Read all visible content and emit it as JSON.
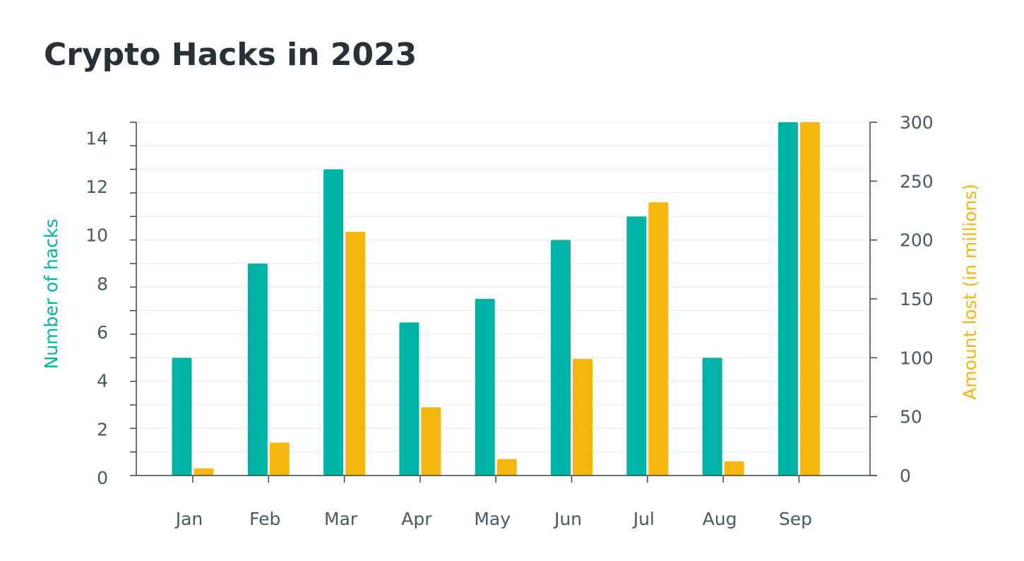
{
  "title": "Crypto Hacks in 2023",
  "colors": {
    "hacks": "#00b3a7",
    "amount": "#f5b70f",
    "axis": "#37474f",
    "tick_text": "#455a64",
    "grid": "#eeeeee"
  },
  "chart_data": {
    "type": "bar",
    "title": "Crypto Hacks in 2023",
    "categories": [
      "Jan",
      "Feb",
      "Mar",
      "Apr",
      "May",
      "Jun",
      "Jul",
      "Aug",
      "Sep"
    ],
    "series": [
      {
        "name": "",
        "axis": "left",
        "values": [
          5,
          9,
          13,
          6.5,
          7.5,
          10,
          11,
          5,
          15
        ]
      },
      {
        "name": "",
        "axis": "right",
        "values": [
          6,
          28,
          207,
          58,
          14,
          99,
          232,
          12,
          300
        ]
      }
    ],
    "ylabel": "Number of hacks",
    "ylabel_right": "Amount lost (in millions)",
    "ylim": [
      0,
      15
    ],
    "ylim_right": [
      0,
      300
    ],
    "yticks": [
      0,
      2,
      4,
      6,
      8,
      10,
      12,
      14
    ],
    "yticks_right": [
      0,
      50,
      100,
      150,
      200,
      250,
      300
    ],
    "grid": true,
    "legend": "none"
  }
}
